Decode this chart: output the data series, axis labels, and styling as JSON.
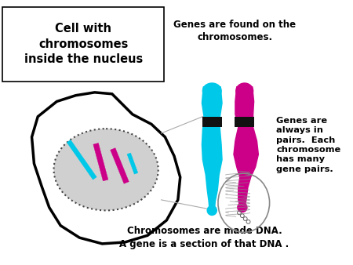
{
  "title_text": "Cell with\nchromosomes\ninside the nucleus",
  "label_genes_found": "Genes are found on the\nchromosomes.",
  "label_genes_always": "Genes are\nalways in\npairs.  Each\nchromosome\nhas many\ngene pairs.",
  "label_chromosomes_dna": "Chromosomes are made DNA.\nA gene is a section of that DNA .",
  "bg_color": "#ffffff",
  "cell_color": "#ffffff",
  "cell_edge_color": "#000000",
  "nucleus_color": "#d0d0d0",
  "nucleus_edge_color": "#444444",
  "chromo_cyan": "#00c8e8",
  "chromo_magenta": "#cc0088",
  "chromo_black_band": "#111111"
}
